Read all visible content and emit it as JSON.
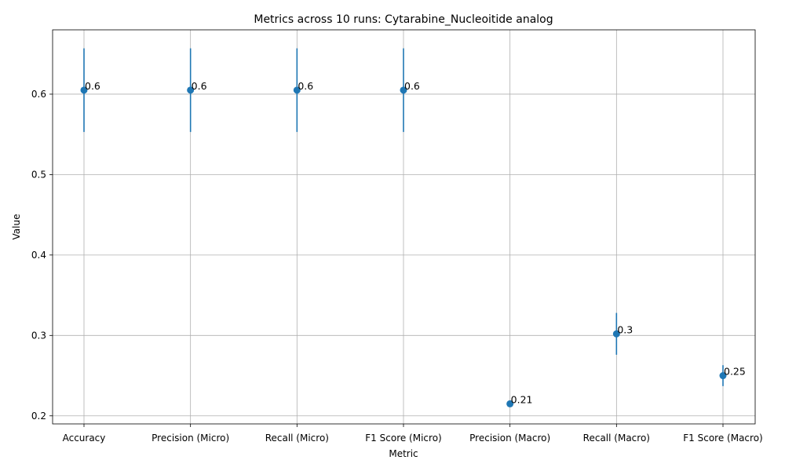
{
  "chart_data": {
    "type": "scatter",
    "title": "Metrics across 10 runs: Cytarabine_Nucleoitide analog",
    "xlabel": "Metric",
    "ylabel": "Value",
    "categories": [
      "Accuracy",
      "Precision (Micro)",
      "Recall (Micro)",
      "F1 Score (Micro)",
      "Precision (Macro)",
      "Recall (Macro)",
      "F1 Score (Macro)"
    ],
    "values": [
      0.605,
      0.605,
      0.605,
      0.605,
      0.215,
      0.302,
      0.25
    ],
    "error": [
      0.052,
      0.052,
      0.052,
      0.052,
      0.0,
      0.026,
      0.013
    ],
    "point_labels": [
      "0.6",
      "0.6",
      "0.6",
      "0.6",
      "0.21",
      "0.3",
      "0.25"
    ],
    "ylim": [
      0.19,
      0.68
    ],
    "yticks": [
      0.2,
      0.3,
      0.4,
      0.5,
      0.6
    ],
    "ytick_labels": [
      "0.2",
      "0.3",
      "0.4",
      "0.5",
      "0.6"
    ],
    "grid": true,
    "color": "#1f77b4"
  }
}
